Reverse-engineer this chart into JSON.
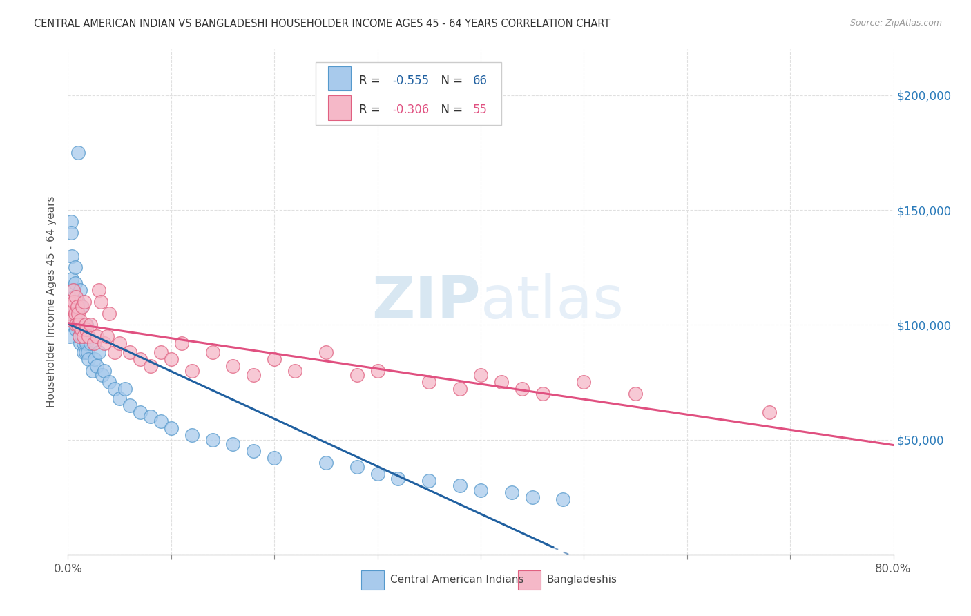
{
  "title": "CENTRAL AMERICAN INDIAN VS BANGLADESHI HOUSEHOLDER INCOME AGES 45 - 64 YEARS CORRELATION CHART",
  "source": "Source: ZipAtlas.com",
  "ylabel": "Householder Income Ages 45 - 64 years",
  "blue_label": "Central American Indians",
  "pink_label": "Bangladeshis",
  "blue_R": "-0.555",
  "blue_N": "66",
  "pink_R": "-0.306",
  "pink_N": "55",
  "blue_color": "#a8caec",
  "blue_edge": "#5599cc",
  "pink_color": "#f5b8c8",
  "pink_edge": "#e06080",
  "blue_line_color": "#2060a0",
  "pink_line_color": "#e05080",
  "watermark_color": "#d0e4f2",
  "background_color": "#ffffff",
  "grid_color": "#e0e0e0",
  "xlim": [
    0.0,
    0.8
  ],
  "ylim": [
    0,
    220000
  ],
  "yticks": [
    0,
    50000,
    100000,
    150000,
    200000
  ],
  "xticks": [
    0.0,
    0.1,
    0.2,
    0.3,
    0.4,
    0.5,
    0.6,
    0.7,
    0.8
  ],
  "blue_x": [
    0.001,
    0.002,
    0.002,
    0.003,
    0.003,
    0.004,
    0.004,
    0.005,
    0.005,
    0.006,
    0.006,
    0.007,
    0.007,
    0.007,
    0.008,
    0.008,
    0.009,
    0.009,
    0.01,
    0.01,
    0.011,
    0.011,
    0.012,
    0.012,
    0.013,
    0.013,
    0.014,
    0.015,
    0.015,
    0.016,
    0.017,
    0.018,
    0.018,
    0.019,
    0.02,
    0.022,
    0.024,
    0.026,
    0.028,
    0.03,
    0.033,
    0.035,
    0.04,
    0.045,
    0.05,
    0.055,
    0.06,
    0.07,
    0.08,
    0.09,
    0.1,
    0.12,
    0.14,
    0.16,
    0.18,
    0.2,
    0.25,
    0.28,
    0.3,
    0.32,
    0.35,
    0.38,
    0.4,
    0.43,
    0.45,
    0.48
  ],
  "blue_y": [
    105000,
    100000,
    95000,
    145000,
    140000,
    130000,
    120000,
    115000,
    108000,
    112000,
    105000,
    125000,
    118000,
    110000,
    105000,
    98000,
    108000,
    100000,
    175000,
    110000,
    100000,
    95000,
    115000,
    92000,
    108000,
    95000,
    100000,
    92000,
    88000,
    95000,
    88000,
    100000,
    92000,
    88000,
    85000,
    92000,
    80000,
    85000,
    82000,
    88000,
    78000,
    80000,
    75000,
    72000,
    68000,
    72000,
    65000,
    62000,
    60000,
    58000,
    55000,
    52000,
    50000,
    48000,
    45000,
    42000,
    40000,
    38000,
    35000,
    33000,
    32000,
    30000,
    28000,
    27000,
    25000,
    24000
  ],
  "pink_x": [
    0.001,
    0.002,
    0.003,
    0.004,
    0.005,
    0.006,
    0.007,
    0.008,
    0.008,
    0.009,
    0.01,
    0.01,
    0.011,
    0.012,
    0.013,
    0.014,
    0.015,
    0.016,
    0.017,
    0.018,
    0.02,
    0.022,
    0.025,
    0.028,
    0.03,
    0.032,
    0.035,
    0.038,
    0.04,
    0.045,
    0.05,
    0.06,
    0.07,
    0.08,
    0.09,
    0.1,
    0.11,
    0.12,
    0.14,
    0.16,
    0.18,
    0.2,
    0.22,
    0.25,
    0.28,
    0.3,
    0.35,
    0.38,
    0.4,
    0.42,
    0.44,
    0.46,
    0.5,
    0.55,
    0.68
  ],
  "pink_y": [
    110000,
    105000,
    108000,
    102000,
    115000,
    110000,
    105000,
    112000,
    100000,
    108000,
    105000,
    100000,
    95000,
    102000,
    98000,
    108000,
    95000,
    110000,
    100000,
    98000,
    95000,
    100000,
    92000,
    95000,
    115000,
    110000,
    92000,
    95000,
    105000,
    88000,
    92000,
    88000,
    85000,
    82000,
    88000,
    85000,
    92000,
    80000,
    88000,
    82000,
    78000,
    85000,
    80000,
    88000,
    78000,
    80000,
    75000,
    72000,
    78000,
    75000,
    72000,
    70000,
    75000,
    70000,
    62000
  ]
}
